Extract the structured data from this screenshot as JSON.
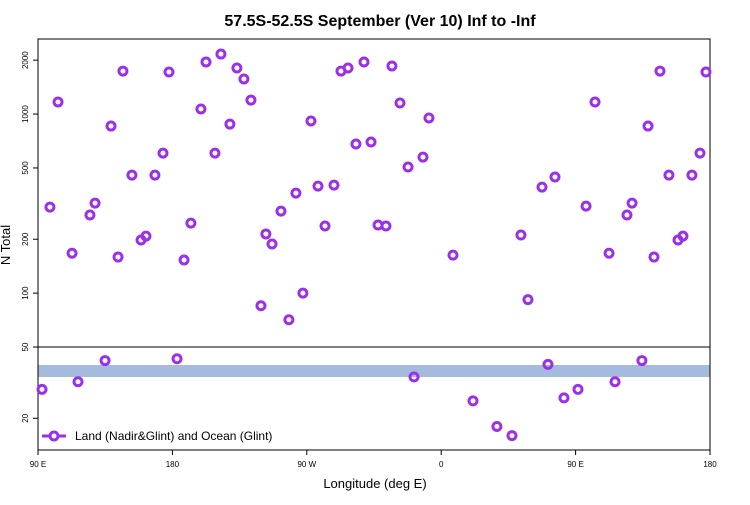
{
  "chart_data": {
    "type": "scatter",
    "title": "57.5S-52.5S September (Ver 10)   Inf to -Inf",
    "x_label": "Longitude (deg E)",
    "y_label": "N Total",
    "log_y": true,
    "grid": false,
    "legend": "lower left",
    "xlim": [
      90,
      540
    ],
    "xticks": [
      {
        "value": 90,
        "label": "90 E"
      },
      {
        "value": 180,
        "label": "180"
      },
      {
        "value": 270,
        "label": "90 W"
      },
      {
        "value": 360,
        "label": "0"
      },
      {
        "value": 450,
        "label": "90 E"
      },
      {
        "value": 540,
        "label": "180"
      }
    ],
    "ylim": [
      13.3,
      2625
    ],
    "yticks": [
      20,
      50,
      100,
      200,
      500,
      1000,
      2000
    ],
    "series": [
      {
        "name": "Land (Nadir&Glint) and Ocean (Glint)",
        "color": "#9b30e8",
        "x": [
          92.7,
          98.0,
          103.4,
          112.8,
          116.8,
          124.8,
          128.2,
          134.9,
          138.9,
          143.6,
          146.9,
          152.9,
          159.0,
          162.3,
          168.3,
          173.7,
          177.7,
          183.1,
          187.8,
          192.4,
          199.1,
          202.5,
          208.5,
          212.5,
          218.5,
          223.2,
          227.9,
          232.6,
          239.3,
          242.6,
          246.7,
          252.7,
          258.0,
          262.7,
          267.4,
          272.8,
          277.5,
          282.2,
          288.2,
          292.9,
          297.6,
          302.9,
          308.3,
          313.0,
          317.7,
          323.0,
          327.0,
          332.4,
          337.8,
          341.8,
          347.8,
          351.8,
          367.9,
          381.3,
          397.3,
          407.4,
          413.4,
          418.1,
          427.5,
          431.5,
          436.2,
          442.2,
          451.6,
          457.0,
          463.0,
          472.4,
          476.4,
          484.4,
          487.8,
          494.4,
          498.5,
          502.5,
          506.5,
          512.5,
          518.6,
          521.9,
          527.9,
          533.3,
          537.3
        ],
        "values": [
          29,
          302,
          1167,
          167,
          32,
          273,
          318,
          42,
          857,
          159,
          1738,
          456,
          198,
          208,
          456,
          605,
          1718,
          43,
          153,
          246,
          1067,
          1953,
          605,
          2163,
          879,
          1807,
          1570,
          1197,
          85,
          214,
          188,
          287,
          71,
          362,
          100,
          914,
          396,
          237,
          401,
          1738,
          1807,
          680,
          1953,
          698,
          240,
          237,
          1854,
          1152,
          506,
          34,
          575,
          950,
          163,
          25,
          18,
          16,
          211,
          92,
          391,
          40,
          445,
          26,
          29,
          306,
          1167,
          167,
          32,
          273,
          318,
          42,
          857,
          159,
          1738,
          456,
          198,
          208,
          456,
          605,
          1718
        ]
      }
    ]
  }
}
